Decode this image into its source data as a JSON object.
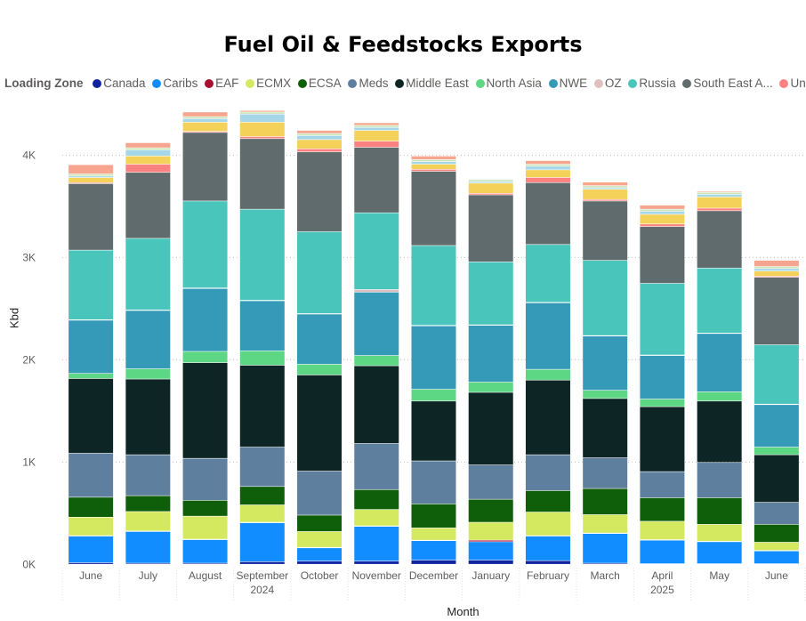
{
  "chart_data": {
    "type": "bar",
    "stacked": true,
    "title": "Fuel Oil & Feedstocks Exports",
    "xlabel": "Month",
    "ylabel": "Kbd",
    "legend_title": "Loading Zone",
    "legend_position": "top",
    "ylim": [
      0,
      4500
    ],
    "yticks": [
      0,
      1000,
      2000,
      3000,
      4000
    ],
    "ytick_labels": [
      "0K",
      "1K",
      "2K",
      "3K",
      "4K"
    ],
    "grid": "horizontal-dotted",
    "categories": [
      "June",
      "July",
      "August",
      "September",
      "October",
      "November",
      "December",
      "January",
      "February",
      "March",
      "April",
      "May",
      "June"
    ],
    "year_labels": [
      {
        "after_index": 3,
        "label": "2024"
      },
      {
        "after_index": 10,
        "label": "2025"
      }
    ],
    "series": [
      {
        "name": "Canada",
        "color": "#12239e",
        "values": [
          15,
          10,
          10,
          25,
          30,
          30,
          40,
          40,
          35,
          10,
          5,
          5,
          5
        ]
      },
      {
        "name": "Caribs",
        "color": "#118dff",
        "values": [
          260,
          310,
          230,
          380,
          130,
          340,
          190,
          180,
          240,
          290,
          230,
          215,
          125
        ]
      },
      {
        "name": "EAF",
        "color": "#a90f32",
        "values": [
          5,
          5,
          5,
          5,
          5,
          5,
          5,
          15,
          5,
          5,
          5,
          5,
          5
        ]
      },
      {
        "name": "ECMX",
        "color": "#d4e860",
        "values": [
          180,
          190,
          225,
          170,
          155,
          160,
          120,
          175,
          230,
          180,
          180,
          165,
          80
        ]
      },
      {
        "name": "ECSA",
        "color": "#0e5e0a",
        "values": [
          195,
          155,
          155,
          180,
          160,
          195,
          235,
          225,
          210,
          255,
          230,
          260,
          175
        ]
      },
      {
        "name": "Meds",
        "color": "#5f7f9f",
        "values": [
          430,
          400,
          410,
          385,
          430,
          450,
          420,
          335,
          350,
          300,
          255,
          345,
          215
        ]
      },
      {
        "name": "Middle East",
        "color": "#0d2524",
        "values": [
          730,
          740,
          935,
          800,
          940,
          760,
          585,
          710,
          730,
          580,
          635,
          600,
          465
        ]
      },
      {
        "name": "North Asia",
        "color": "#5dd783",
        "values": [
          50,
          100,
          110,
          140,
          105,
          100,
          115,
          100,
          105,
          80,
          75,
          90,
          75
        ]
      },
      {
        "name": "NWE",
        "color": "#3599b8",
        "values": [
          520,
          570,
          615,
          490,
          490,
          620,
          620,
          555,
          650,
          530,
          425,
          570,
          415
        ]
      },
      {
        "name": "OZ",
        "color": "#dfbfbf",
        "values": [
          5,
          5,
          5,
          5,
          5,
          25,
          5,
          5,
          5,
          5,
          5,
          5,
          5
        ]
      },
      {
        "name": "Russia",
        "color": "#4ac5bb",
        "values": [
          680,
          700,
          850,
          890,
          800,
          750,
          780,
          615,
          565,
          735,
          700,
          635,
          580
        ]
      },
      {
        "name": "South East Asia",
        "color": "#5f6b6d",
        "values": [
          650,
          645,
          670,
          690,
          780,
          640,
          725,
          655,
          605,
          580,
          555,
          560,
          660
        ]
      },
      {
        "name": "Unknown",
        "color": "#fb8281",
        "values": [
          10,
          80,
          10,
          20,
          30,
          60,
          20,
          15,
          50,
          15,
          25,
          25,
          10
        ]
      },
      {
        "name": "(unlabeled) yellow",
        "color": "#f4d25a",
        "values": [
          50,
          80,
          90,
          140,
          90,
          105,
          50,
          100,
          75,
          100,
          95,
          110,
          50
        ]
      },
      {
        "name": "(unlabeled) light blue",
        "color": "#a6d7e8",
        "values": [
          15,
          60,
          35,
          80,
          40,
          30,
          25,
          15,
          35,
          15,
          30,
          25,
          25
        ]
      },
      {
        "name": "(unlabeled) light green",
        "color": "#cde6b8",
        "values": [
          20,
          20,
          20,
          20,
          20,
          20,
          20,
          20,
          20,
          20,
          20,
          20,
          20
        ]
      },
      {
        "name": "(unlabeled) salmon",
        "color": "#f6a58e",
        "values": [
          90,
          50,
          45,
          15,
          30,
          25,
          35,
          5,
          35,
          35,
          40,
          10,
          60
        ]
      }
    ]
  }
}
